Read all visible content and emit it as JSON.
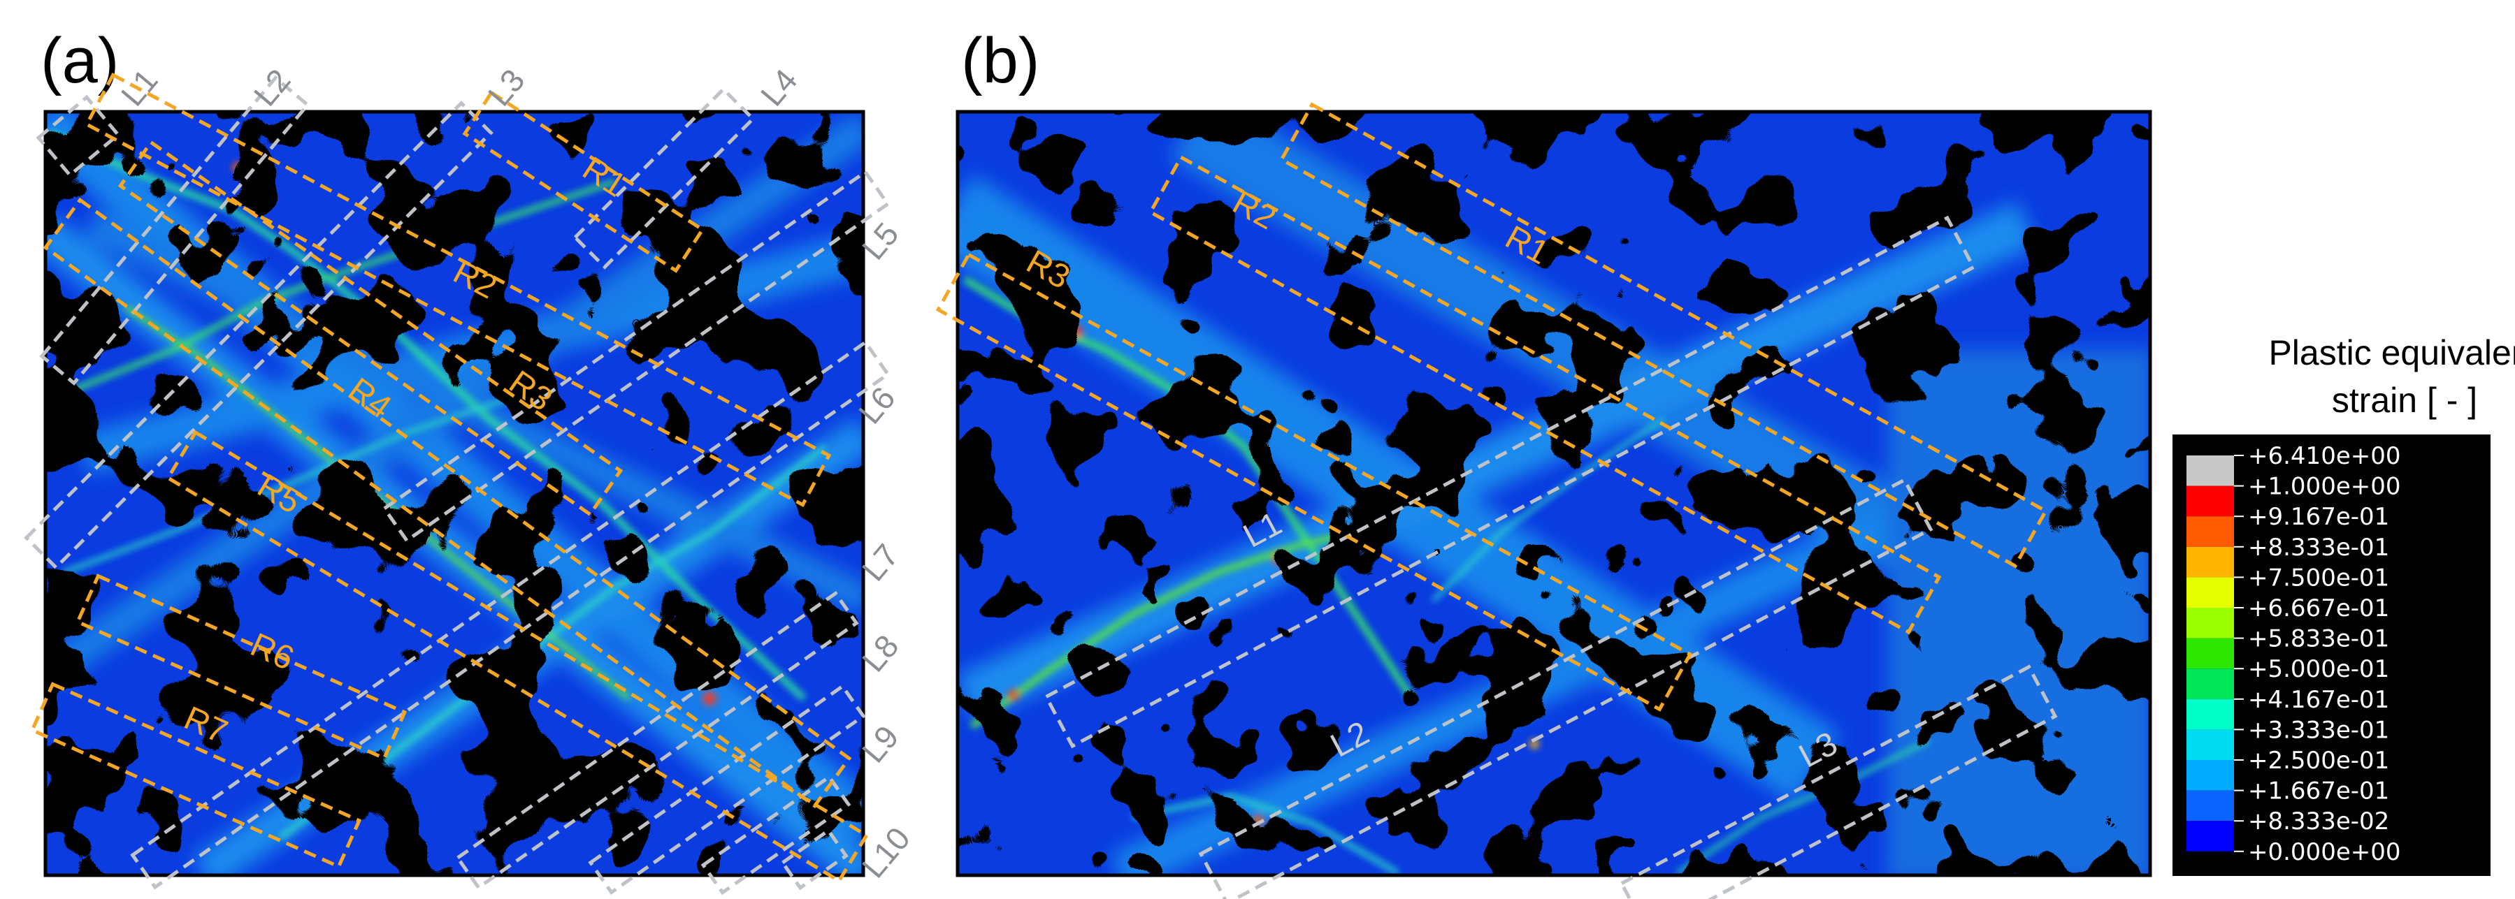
{
  "panels": {
    "a": {
      "label": "(a)"
    },
    "b": {
      "label": "(b)"
    }
  },
  "panel_a": {
    "region_labels": [
      "R1",
      "R2",
      "R3",
      "R4",
      "R5",
      "R6",
      "R7"
    ],
    "line_labels": [
      "L1",
      "L2",
      "L3",
      "L4",
      "L5",
      "L6",
      "L7",
      "L8",
      "L9",
      "L10"
    ]
  },
  "panel_b": {
    "region_labels": [
      "R1",
      "R2",
      "R3"
    ],
    "line_labels": [
      "L1",
      "L2",
      "L3"
    ]
  },
  "colorbar": {
    "title_line1": "Plastic equivalent",
    "title_line2": "strain [ - ]",
    "ticks": [
      "+6.410e+00",
      "+1.000e+00",
      "+9.167e-01",
      "+8.333e-01",
      "+7.500e-01",
      "+6.667e-01",
      "+5.833e-01",
      "+5.000e-01",
      "+4.167e-01",
      "+3.333e-01",
      "+2.500e-01",
      "+1.667e-01",
      "+8.333e-02",
      "+0.000e+00"
    ],
    "colors": [
      "#c8c8c8",
      "#ff0000",
      "#ff5a00",
      "#ffb400",
      "#e6ff00",
      "#9bff00",
      "#2de600",
      "#00e65a",
      "#00ffc8",
      "#00dcf0",
      "#00aaff",
      "#0a64ff",
      "#0000ff"
    ]
  },
  "colors": {
    "roi_orange": "#f5a623",
    "roi_grey": "#bfc3c8",
    "field_background": "#0a3ce0"
  }
}
